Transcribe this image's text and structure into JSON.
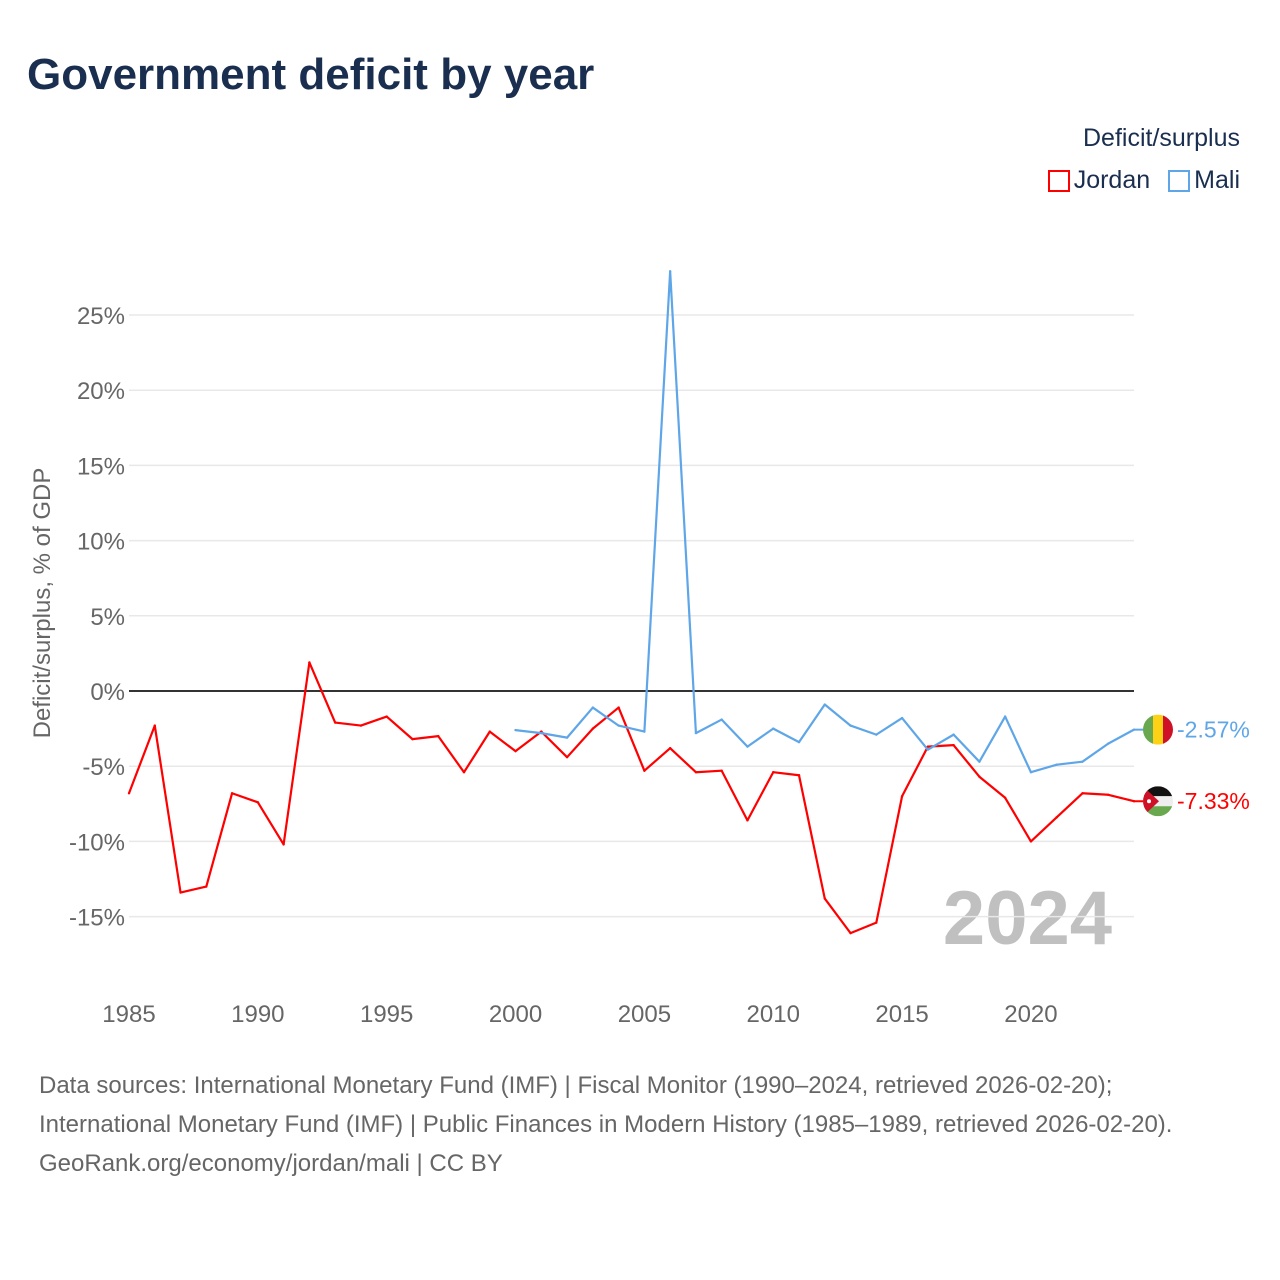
{
  "title": "Government deficit by year",
  "legend_title": "Deficit/surplus",
  "sources": "Data sources: International Monetary Fund (IMF) | Fiscal Monitor (1990–2024, retrieved 2026-02-20); International Monetary Fund (IMF) | Public Finances in Modern History (1985–1989, retrieved 2026-02-20).",
  "footer_link": "GeoRank.org/economy/jordan/mali | CC BY",
  "chart_data": {
    "type": "line",
    "title": "Government deficit by year",
    "xlabel": "",
    "ylabel": "Deficit/surplus, % of GDP",
    "xlim": [
      1985,
      2024
    ],
    "ylim": [
      -18,
      29
    ],
    "yticks": [
      -15,
      -10,
      -5,
      0,
      5,
      10,
      15,
      20,
      25
    ],
    "ytick_labels": [
      "-15%",
      "-10%",
      "-5%",
      "0%",
      "5%",
      "10%",
      "15%",
      "20%",
      "25%"
    ],
    "xticks": [
      1985,
      1990,
      1995,
      2000,
      2005,
      2010,
      2015,
      2020
    ],
    "xtick_labels": [
      "1985",
      "1990",
      "1995",
      "2000",
      "2005",
      "2010",
      "2015",
      "2020"
    ],
    "year_watermark": "2024",
    "grid": true,
    "legend_position": "top-right",
    "series": [
      {
        "name": "Jordan",
        "color": "#ff0000",
        "end_label": "-7.33%",
        "x": [
          1985,
          1986,
          1987,
          1988,
          1989,
          1990,
          1991,
          1992,
          1993,
          1994,
          1995,
          1996,
          1997,
          1998,
          1999,
          2000,
          2001,
          2002,
          2003,
          2004,
          2005,
          2006,
          2007,
          2008,
          2009,
          2010,
          2011,
          2012,
          2013,
          2014,
          2015,
          2016,
          2017,
          2018,
          2019,
          2020,
          2021,
          2022,
          2023,
          2024
        ],
        "values": [
          -6.8,
          -2.3,
          -13.4,
          -13.0,
          -6.8,
          -7.4,
          -10.2,
          1.9,
          -2.1,
          -2.3,
          -1.7,
          -3.2,
          -3.0,
          -5.4,
          -2.7,
          -4.0,
          -2.7,
          -4.4,
          -2.5,
          -1.1,
          -5.3,
          -3.8,
          -5.4,
          -5.3,
          -8.6,
          -5.4,
          -5.6,
          -13.8,
          -16.1,
          -15.4,
          -7.0,
          -3.7,
          -3.6,
          -5.7,
          -7.1,
          -10.0,
          -8.4,
          -6.8,
          -6.9,
          -7.33
        ]
      },
      {
        "name": "Mali",
        "color": "#5ea6e8",
        "end_label": "-2.57%",
        "x": [
          2000,
          2001,
          2002,
          2003,
          2004,
          2005,
          2006,
          2007,
          2008,
          2009,
          2010,
          2011,
          2012,
          2013,
          2014,
          2015,
          2016,
          2017,
          2018,
          2019,
          2020,
          2021,
          2022,
          2023,
          2024
        ],
        "values": [
          -2.6,
          -2.8,
          -3.1,
          -1.1,
          -2.3,
          -2.7,
          27.9,
          -2.8,
          -1.9,
          -3.7,
          -2.5,
          -3.4,
          -0.9,
          -2.3,
          -2.9,
          -1.8,
          -3.9,
          -2.9,
          -4.7,
          -1.7,
          -5.4,
          -4.9,
          -4.7,
          -3.5,
          -2.57
        ]
      }
    ]
  }
}
